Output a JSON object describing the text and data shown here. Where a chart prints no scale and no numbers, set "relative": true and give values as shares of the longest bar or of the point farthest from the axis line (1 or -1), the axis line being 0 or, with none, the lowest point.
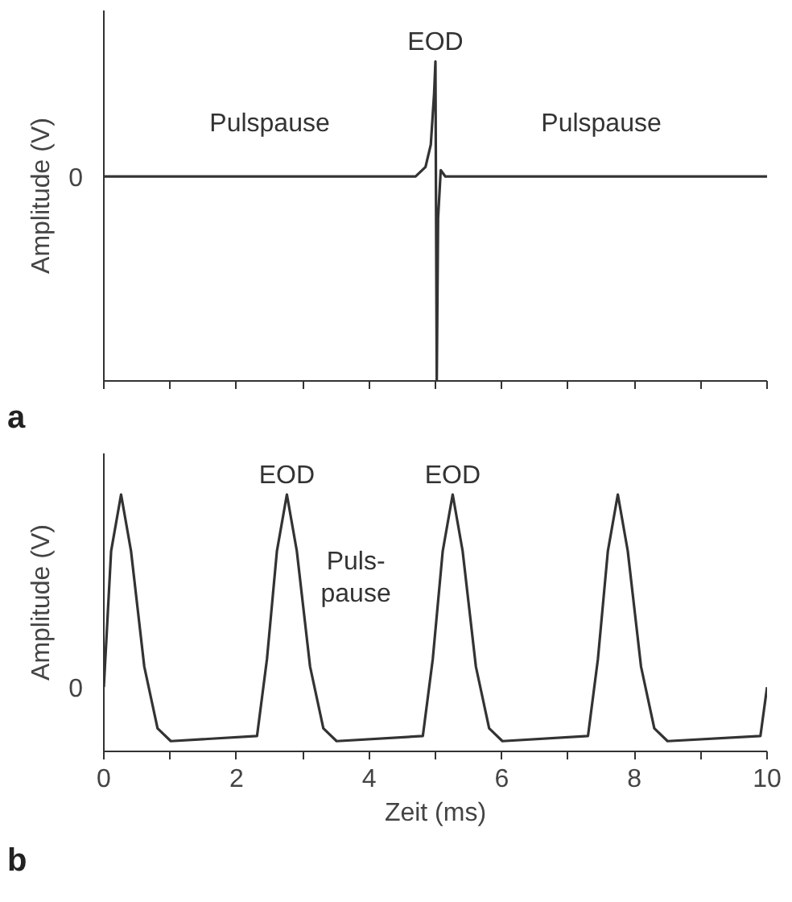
{
  "chart_data": [
    {
      "type": "line",
      "relative": true,
      "ylabel": "Amplitude (V)",
      "color": "#333333",
      "x": [
        0,
        4.7,
        4.85,
        4.93,
        4.98,
        5.0,
        5.02,
        5.04,
        5.08,
        5.15,
        10
      ],
      "values": [
        0.64,
        0.64,
        0.67,
        0.74,
        0.9,
        1,
        0,
        0.51,
        0.66,
        0.64,
        0.64
      ],
      "xlim": [
        0,
        10
      ],
      "xticks": [
        {
          "value": 0,
          "label": null
        },
        {
          "value": 1,
          "label": null
        },
        {
          "value": 2,
          "label": null
        },
        {
          "value": 3,
          "label": null
        },
        {
          "value": 4,
          "label": null
        },
        {
          "value": 5,
          "label": null
        },
        {
          "value": 6,
          "label": null
        },
        {
          "value": 7,
          "label": null
        },
        {
          "value": 8,
          "label": null
        },
        {
          "value": 9,
          "label": null
        },
        {
          "value": 10,
          "label": null
        }
      ],
      "tick_labels": false,
      "grid": false,
      "annotations": [
        {
          "text": "0",
          "x": 0,
          "y": 0.64
        },
        {
          "text": "Pulspause",
          "x": 2.5,
          "y": 0.64
        },
        {
          "text": "Pulspause",
          "x": 7.5,
          "y": 0.64
        },
        {
          "text": "EOD",
          "x": 5,
          "y": 1
        },
        "a"
      ]
    },
    {
      "type": "line",
      "relative": true,
      "ylabel": "Amplitude (V)",
      "xlabel": "Zeit (ms)",
      "color": "#333333",
      "x": [
        0,
        0.11,
        0.26,
        0.41,
        0.61,
        0.81,
        1.01,
        2.31,
        2.46,
        2.61,
        2.76,
        2.91,
        3.11,
        3.31,
        3.51,
        4.81,
        4.96,
        5.11,
        5.26,
        5.41,
        5.61,
        5.81,
        6.01,
        7.3,
        7.45,
        7.6,
        7.75,
        7.9,
        8.1,
        8.3,
        8.5,
        9.9,
        10
      ],
      "values": [
        0.25,
        0.78,
        1,
        0.78,
        0.33,
        0.09,
        0.04,
        0.06,
        0.36,
        0.78,
        1,
        0.78,
        0.33,
        0.09,
        0.04,
        0.06,
        0.36,
        0.78,
        1,
        0.78,
        0.33,
        0.09,
        0.04,
        0.06,
        0.36,
        0.78,
        1,
        0.78,
        0.33,
        0.09,
        0.04,
        0.06,
        0.25
      ],
      "xlim": [
        0,
        10
      ],
      "xticks": [
        0,
        {
          "value": 1,
          "label": null
        },
        2,
        {
          "value": 3,
          "label": null
        },
        4,
        {
          "value": 5,
          "label": null
        },
        6,
        {
          "value": 7,
          "label": null
        },
        8,
        {
          "value": 9,
          "label": null
        },
        10
      ],
      "tick_labels": "x",
      "grid": false,
      "annotations": [
        {
          "text": "0",
          "x": 0,
          "y": 0.25
        },
        {
          "text": "EOD",
          "x": 2.76,
          "y": 1
        },
        {
          "text": "EOD",
          "x": 5.26,
          "y": 1
        },
        "Puls-\npause",
        "b"
      ]
    }
  ]
}
